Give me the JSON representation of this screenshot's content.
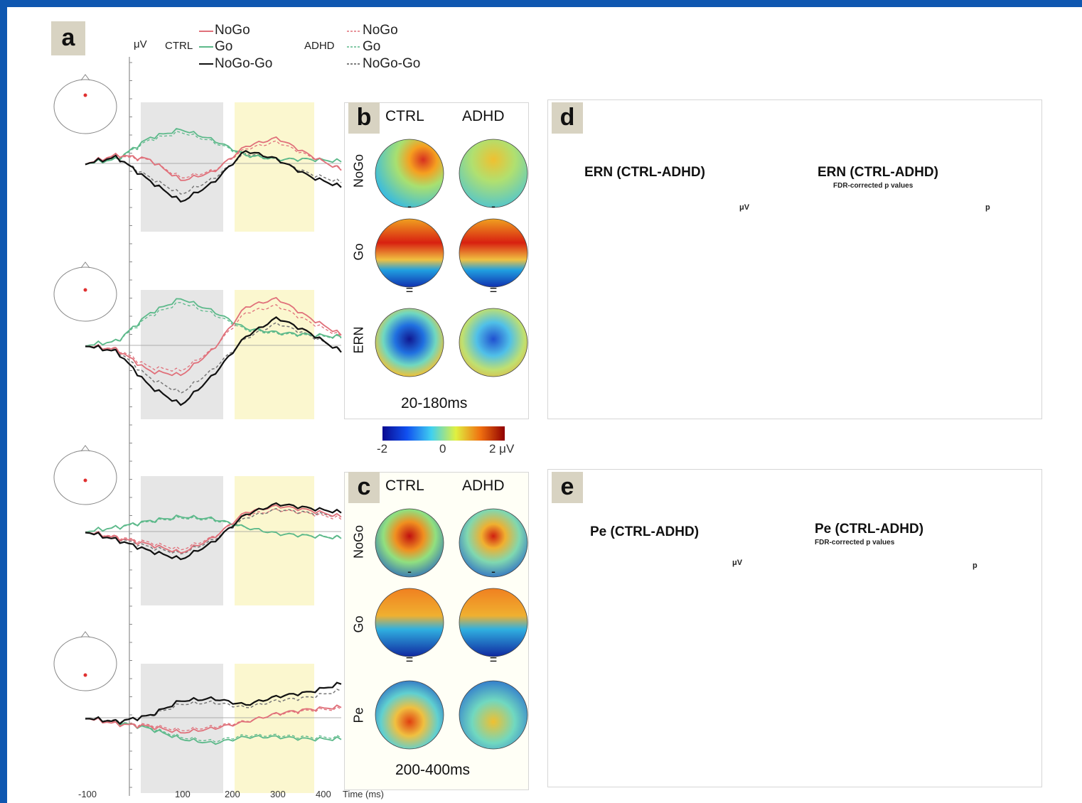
{
  "panels": {
    "a": {
      "label": "a",
      "y_unit": "μV",
      "legend": {
        "ctrl_group": "CTRL",
        "adhd_group": "ADHD",
        "ctrl_items": [
          "NoGo",
          "Go",
          "NoGo-Go"
        ],
        "adhd_items": [
          "NoGo",
          "Go",
          "NoGo-Go"
        ]
      },
      "x_axis": {
        "ticks": [
          "-100",
          "100",
          "200",
          "300",
          "400"
        ],
        "label": "Time (ms)"
      }
    },
    "b": {
      "label": "b",
      "columns": [
        "CTRL",
        "ADHD"
      ],
      "rows": [
        "NoGo",
        "Go",
        "ERN"
      ],
      "window": "20-180ms"
    },
    "c": {
      "label": "c",
      "columns": [
        "CTRL",
        "ADHD"
      ],
      "rows": [
        "NoGo",
        "Go",
        "Pe"
      ],
      "window": "200-400ms"
    },
    "shared_colorbar": {
      "min": "-2",
      "mid": "0",
      "max": "2 μV"
    },
    "d": {
      "label": "d",
      "left_title": "ERN (CTRL-ADHD)",
      "right_title": "ERN (CTRL-ADHD)",
      "right_subtitle": "FDR-corrected p values",
      "cbar_left_unit": "μV",
      "cbar_right_unit": "p"
    },
    "e": {
      "label": "e",
      "left_title": "Pe (CTRL-ADHD)",
      "right_title": "Pe (CTRL-ADHD)",
      "right_subtitle": "FDR-corrected p values",
      "cbar_left_unit": "μV",
      "cbar_right_unit": "p"
    }
  },
  "colors": {
    "ctrl_nogo": "#e0707a",
    "ctrl_go": "#5cb98a",
    "nogo_go": "#111111",
    "adhd_dashed": "#777777",
    "early_window": "#e6e6e6",
    "late_window": "#fbf7cf",
    "background": "#0f57b0"
  }
}
